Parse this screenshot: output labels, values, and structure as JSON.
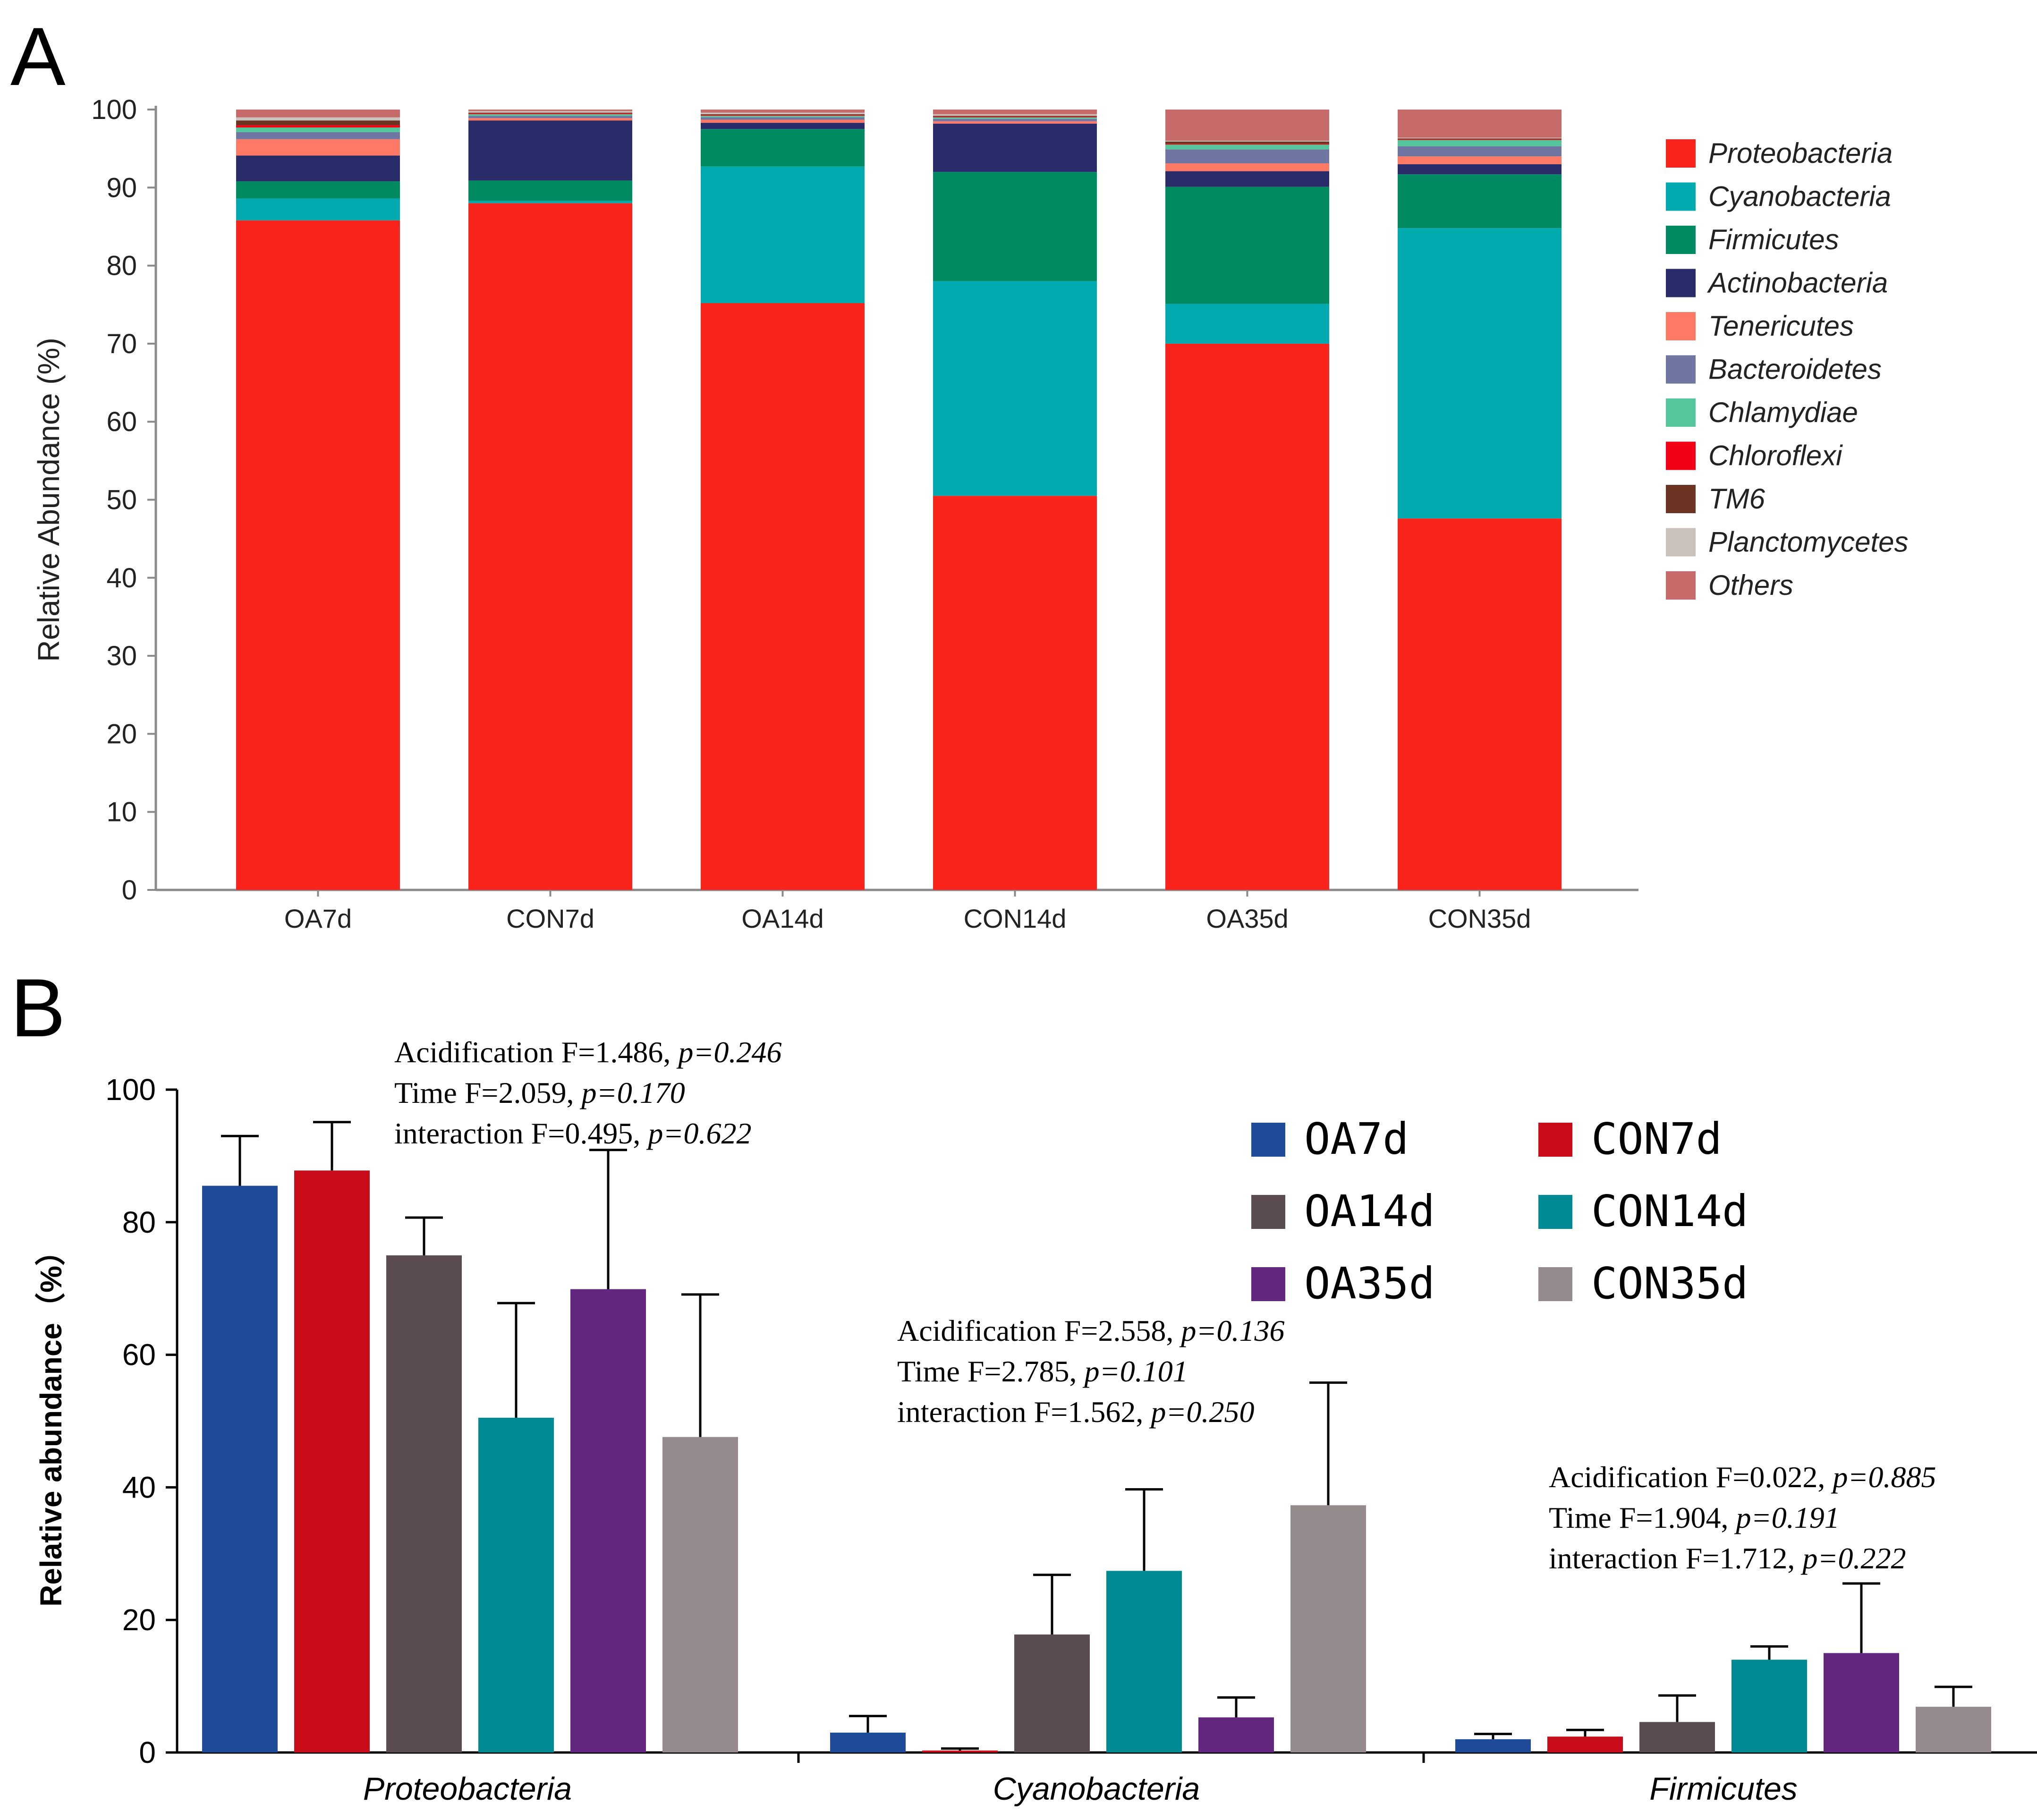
{
  "panels": {
    "A": {
      "letter": "A"
    },
    "B": {
      "letter": "B"
    }
  },
  "colors": {
    "taxa": [
      "#fb241c",
      "#00aaaf",
      "#008a62",
      "#2a2b69",
      "#ff7a66",
      "#6f76a2",
      "#55c69c",
      "#f20015",
      "#6c3422",
      "#c9c1bc",
      "#c76a6a"
    ],
    "groups": [
      "#1f4b99",
      "#c80c19",
      "#5b4c52",
      "#008a94",
      "#632780",
      "#958b8c"
    ]
  },
  "chart_data": [
    {
      "panel": "A",
      "type": "bar",
      "stacked": true,
      "title": "",
      "xlabel": "",
      "ylabel": "Relative Abundance (%)",
      "ylim": [
        0,
        100
      ],
      "yticks": [
        0,
        10,
        20,
        30,
        40,
        50,
        60,
        70,
        80,
        90,
        100
      ],
      "categories": [
        "OA7d",
        "CON7d",
        "OA14d",
        "CON14d",
        "OA35d",
        "CON35d"
      ],
      "legend_position": "right",
      "series": [
        {
          "name": "Proteobacteria",
          "values": [
            85.8,
            88.0,
            75.2,
            50.5,
            70.0,
            47.6
          ]
        },
        {
          "name": "Cyanobacteria",
          "values": [
            2.8,
            0.3,
            17.5,
            27.5,
            5.1,
            37.2
          ]
        },
        {
          "name": "Firmicutes",
          "values": [
            2.2,
            2.6,
            4.8,
            14.0,
            15.0,
            6.9
          ]
        },
        {
          "name": "Actinobacteria",
          "values": [
            3.3,
            7.7,
            0.8,
            6.2,
            2.0,
            1.3
          ]
        },
        {
          "name": "Tenericutes",
          "values": [
            2.1,
            0.3,
            0.4,
            0.3,
            1.0,
            1.0
          ]
        },
        {
          "name": "Bacteroidetes",
          "values": [
            0.9,
            0.3,
            0.3,
            0.3,
            1.8,
            1.3
          ]
        },
        {
          "name": "Chlamydiae",
          "values": [
            0.6,
            0.2,
            0.2,
            0.2,
            0.6,
            0.8
          ]
        },
        {
          "name": "Chloroflexi",
          "values": [
            0.3,
            0.1,
            0.1,
            0.1,
            0.1,
            0.1
          ]
        },
        {
          "name": "TM6",
          "values": [
            0.6,
            0.1,
            0.1,
            0.1,
            0.3,
            0.1
          ]
        },
        {
          "name": "Planctomycetes",
          "values": [
            0.4,
            0.2,
            0.2,
            0.2,
            0.1,
            0.1
          ]
        },
        {
          "name": "Others",
          "values": [
            1.0,
            0.2,
            0.4,
            0.6,
            4.0,
            3.6
          ]
        }
      ]
    },
    {
      "panel": "B",
      "type": "bar",
      "stacked": false,
      "title": "",
      "xlabel": "",
      "ylabel": "Relative abundance（%）",
      "ylim": [
        0,
        100
      ],
      "yticks": [
        0,
        20,
        40,
        60,
        80,
        100
      ],
      "categories": [
        "Proteobacteria",
        "Cyanobacteria",
        "Firmicutes"
      ],
      "legend_position": "top-right",
      "series": [
        {
          "name": "OA7d",
          "values": [
            85.5,
            3.0,
            2.0
          ],
          "errors": [
            7.5,
            2.5,
            0.8
          ]
        },
        {
          "name": "CON7d",
          "values": [
            87.8,
            0.3,
            2.4
          ],
          "errors": [
            7.3,
            0.3,
            1.0
          ]
        },
        {
          "name": "OA14d",
          "values": [
            75.0,
            17.8,
            4.6
          ],
          "errors": [
            5.7,
            9.0,
            4.0
          ]
        },
        {
          "name": "CON14d",
          "values": [
            50.5,
            27.4,
            14.0
          ],
          "errors": [
            17.3,
            12.3,
            2.0
          ]
        },
        {
          "name": "OA35d",
          "values": [
            69.9,
            5.3,
            15.0
          ],
          "errors": [
            21.0,
            3.0,
            10.5
          ]
        },
        {
          "name": "CON35d",
          "values": [
            47.6,
            37.3,
            6.9
          ],
          "errors": [
            21.5,
            18.5,
            3.0
          ]
        }
      ],
      "annotations": [
        {
          "category": "Proteobacteria",
          "lines": [
            {
              "label": "Acidification F=1.486, ",
              "p": "p=0.246"
            },
            {
              "label": "Time F=2.059, ",
              "p": "p=0.170"
            },
            {
              "label": "interaction F=0.495, ",
              "p": "p=0.622"
            }
          ]
        },
        {
          "category": "Cyanobacteria",
          "lines": [
            {
              "label": "Acidification F=2.558, ",
              "p": "p=0.136"
            },
            {
              "label": "Time F=2.785, ",
              "p": "p=0.101"
            },
            {
              "label": "interaction F=1.562, ",
              "p": "p=0.250"
            }
          ]
        },
        {
          "category": "Firmicutes",
          "lines": [
            {
              "label": "Acidification F=0.022, ",
              "p": "p=0.885"
            },
            {
              "label": "Time F=1.904, ",
              "p": "p=0.191"
            },
            {
              "label": "interaction F=1.712, ",
              "p": "p=0.222"
            }
          ]
        }
      ]
    }
  ]
}
